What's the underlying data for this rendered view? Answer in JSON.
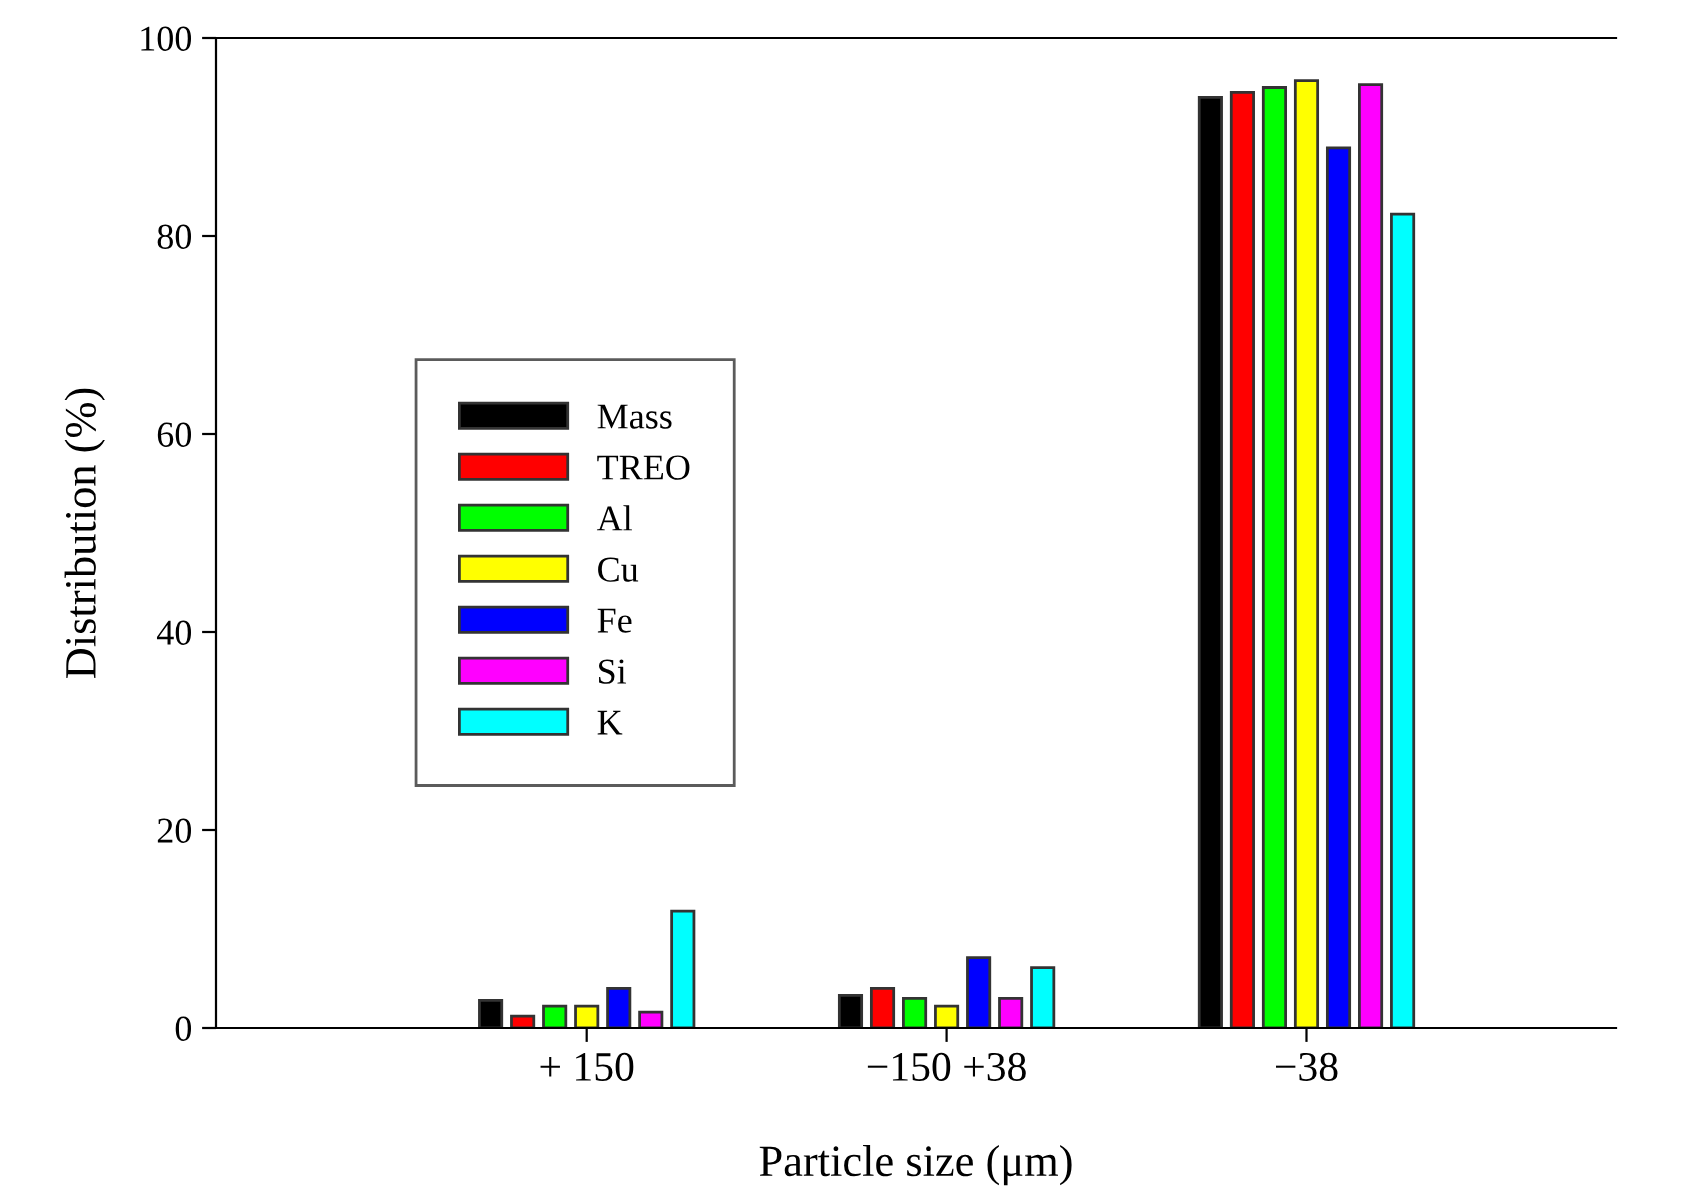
{
  "chart_data": {
    "type": "bar",
    "xlabel": "Particle size (μm)",
    "ylabel": "Distribution (%)",
    "categories": [
      "+ 150",
      "−150 +38",
      "−38"
    ],
    "series": [
      {
        "name": "Mass",
        "color": "#000000",
        "values": [
          2.8,
          3.3,
          94.0
        ]
      },
      {
        "name": "TREO",
        "color": "#ff0000",
        "values": [
          1.2,
          4.0,
          94.5
        ]
      },
      {
        "name": "Al",
        "color": "#00ff00",
        "values": [
          2.2,
          3.0,
          95.0
        ]
      },
      {
        "name": "Cu",
        "color": "#ffff00",
        "values": [
          2.2,
          2.2,
          95.7
        ]
      },
      {
        "name": "Fe",
        "color": "#0000ff",
        "values": [
          4.0,
          7.1,
          88.9
        ]
      },
      {
        "name": "Si",
        "color": "#ff00ff",
        "values": [
          1.6,
          3.0,
          95.3
        ]
      },
      {
        "name": "K",
        "color": "#00ffff",
        "values": [
          11.8,
          6.1,
          82.2
        ]
      }
    ],
    "ylim": [
      0,
      100
    ],
    "yticks": [
      0,
      20,
      40,
      60,
      80,
      100
    ],
    "grid": false,
    "legend": "left"
  }
}
